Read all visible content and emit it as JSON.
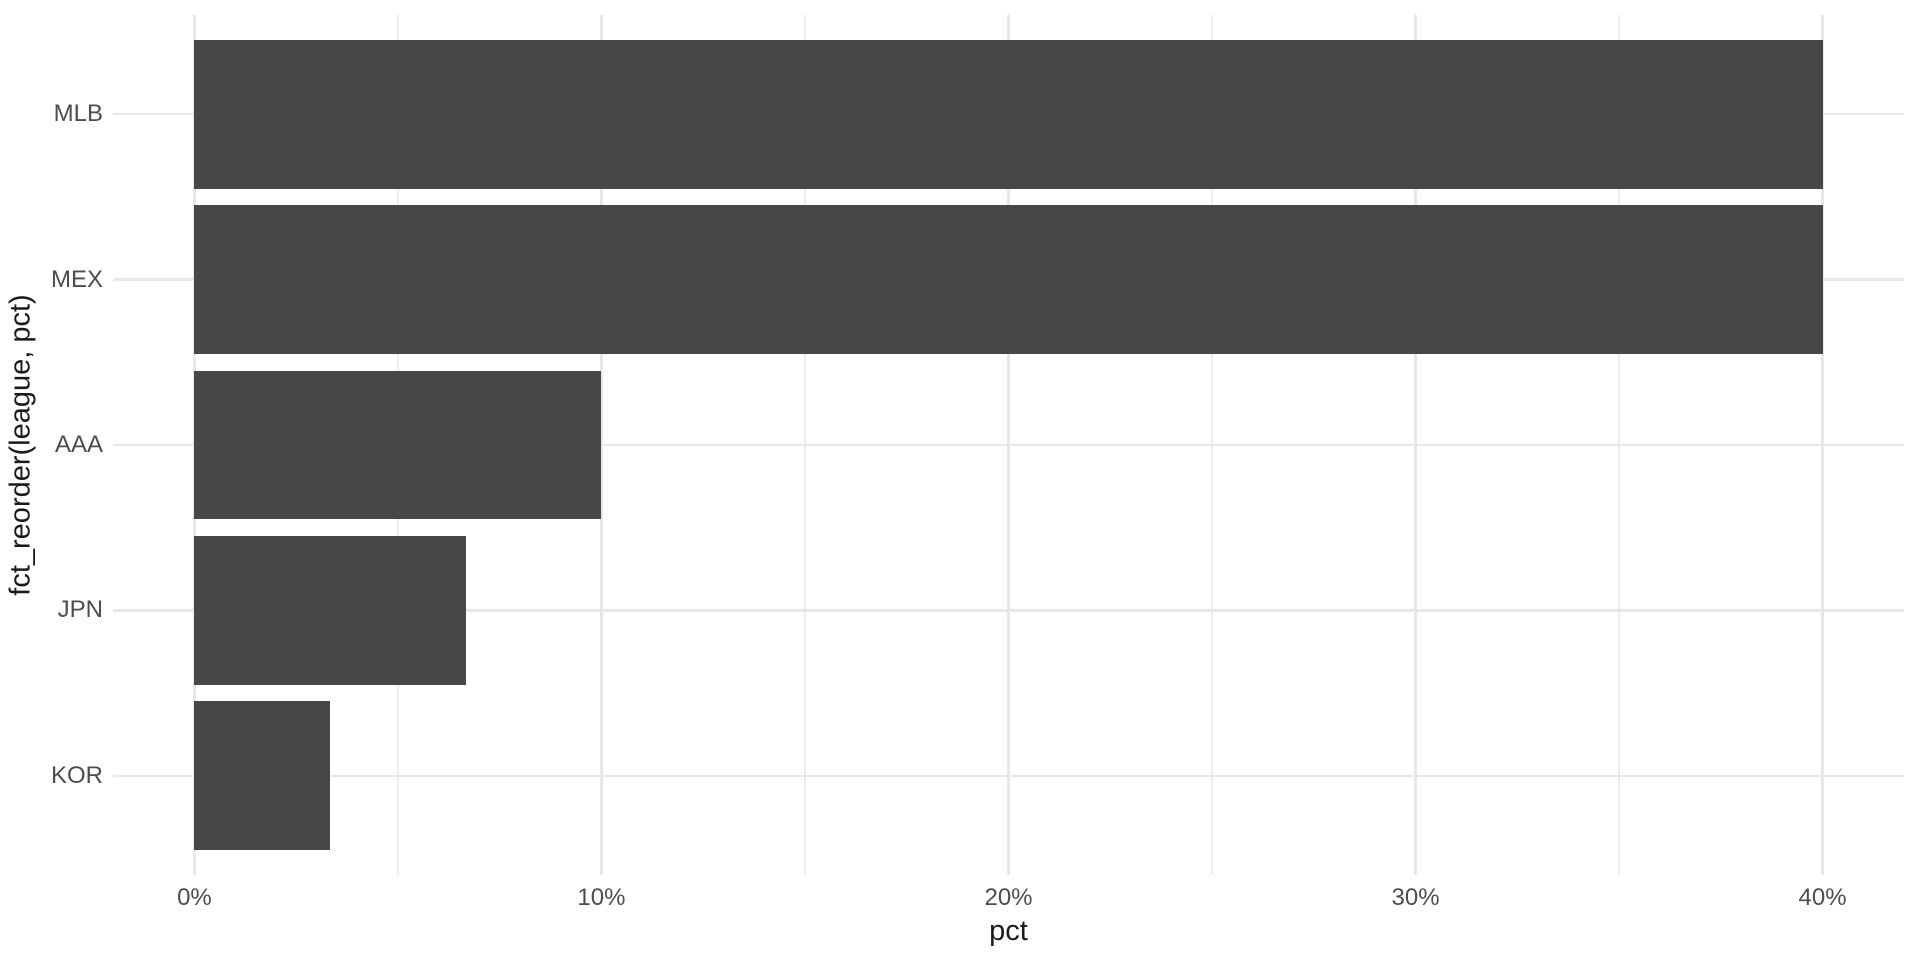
{
  "chart_data": {
    "type": "bar",
    "orientation": "horizontal",
    "title": "",
    "xlabel": "pct",
    "ylabel": "fct_reorder(league, pct)",
    "categories": [
      "MLB",
      "MEX",
      "AAA",
      "JPN",
      "KOR"
    ],
    "values": [
      40,
      40,
      10,
      6.67,
      3.33
    ],
    "value_unit": "%",
    "x_axis": {
      "min": 0,
      "max": 40,
      "expansion_pct": 5,
      "major_tick_values": [
        0,
        10,
        20,
        30,
        40
      ],
      "major_tick_labels": [
        "0%",
        "10%",
        "20%",
        "30%",
        "40%"
      ],
      "minor_tick_values": [
        5,
        15,
        25,
        35
      ]
    },
    "grid": "major and minor vertical, major horizontal at category centers",
    "legend": "none",
    "colors": {
      "bar_fill": "#474747",
      "grid_major": "#e7e7e7",
      "grid_minor": "#ededed",
      "tick_label": "#4d4d4d",
      "axis_title": "#1a1a1a",
      "panel_background": "#ffffff"
    }
  }
}
